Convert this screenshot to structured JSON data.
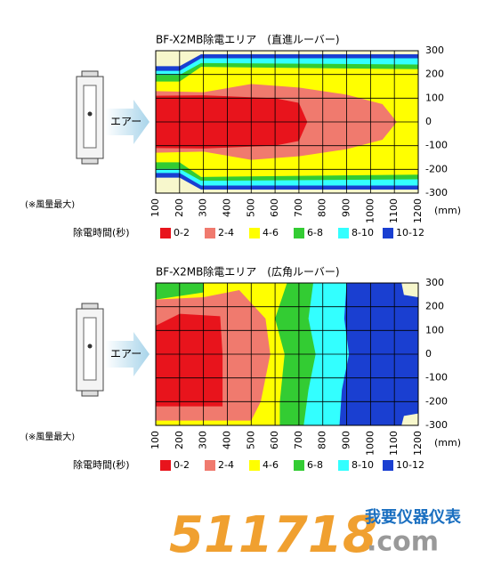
{
  "chart_data": [
    {
      "type": "contour",
      "title": "BF-X2MB除電エリア　(直進ルーバー)",
      "note": "(※風量最大)",
      "air_label": "エアー",
      "xlabel": "(mm)",
      "xlim": [
        100,
        1200
      ],
      "xticks": [
        100,
        200,
        300,
        400,
        500,
        600,
        700,
        800,
        900,
        1000,
        1100,
        1200
      ],
      "ylim": [
        -300,
        300
      ],
      "yticks": [
        300,
        200,
        100,
        0,
        -100,
        -200,
        -300
      ],
      "grid": true,
      "legend": {
        "title": "除電時間(秒)",
        "labels": [
          "0-2",
          "2-4",
          "4-6",
          "6-8",
          "8-10",
          "10-12"
        ],
        "colors": [
          "#e8141c",
          "#f07a6e",
          "#ffff00",
          "#33cc33",
          "#33ffff",
          "#1a3fd1"
        ]
      }
    },
    {
      "type": "contour",
      "title": "BF-X2MB除電エリア　(広角ルーバー)",
      "note": "(※風量最大)",
      "air_label": "エアー",
      "xlabel": "(mm)",
      "xlim": [
        100,
        1200
      ],
      "xticks": [
        100,
        200,
        300,
        400,
        500,
        600,
        700,
        800,
        900,
        1000,
        1100,
        1200
      ],
      "ylim": [
        -300,
        300
      ],
      "yticks": [
        300,
        200,
        100,
        0,
        -100,
        -200,
        -300
      ],
      "grid": true,
      "legend": {
        "title": "除電時間(秒)",
        "labels": [
          "0-2",
          "2-4",
          "4-6",
          "6-8",
          "8-10",
          "10-12"
        ],
        "colors": [
          "#e8141c",
          "#f07a6e",
          "#ffff00",
          "#33cc33",
          "#33ffff",
          "#1a3fd1"
        ]
      }
    }
  ],
  "watermark": {
    "number": "511718",
    "domain": ".com",
    "brand": "我要仪器仪表"
  }
}
